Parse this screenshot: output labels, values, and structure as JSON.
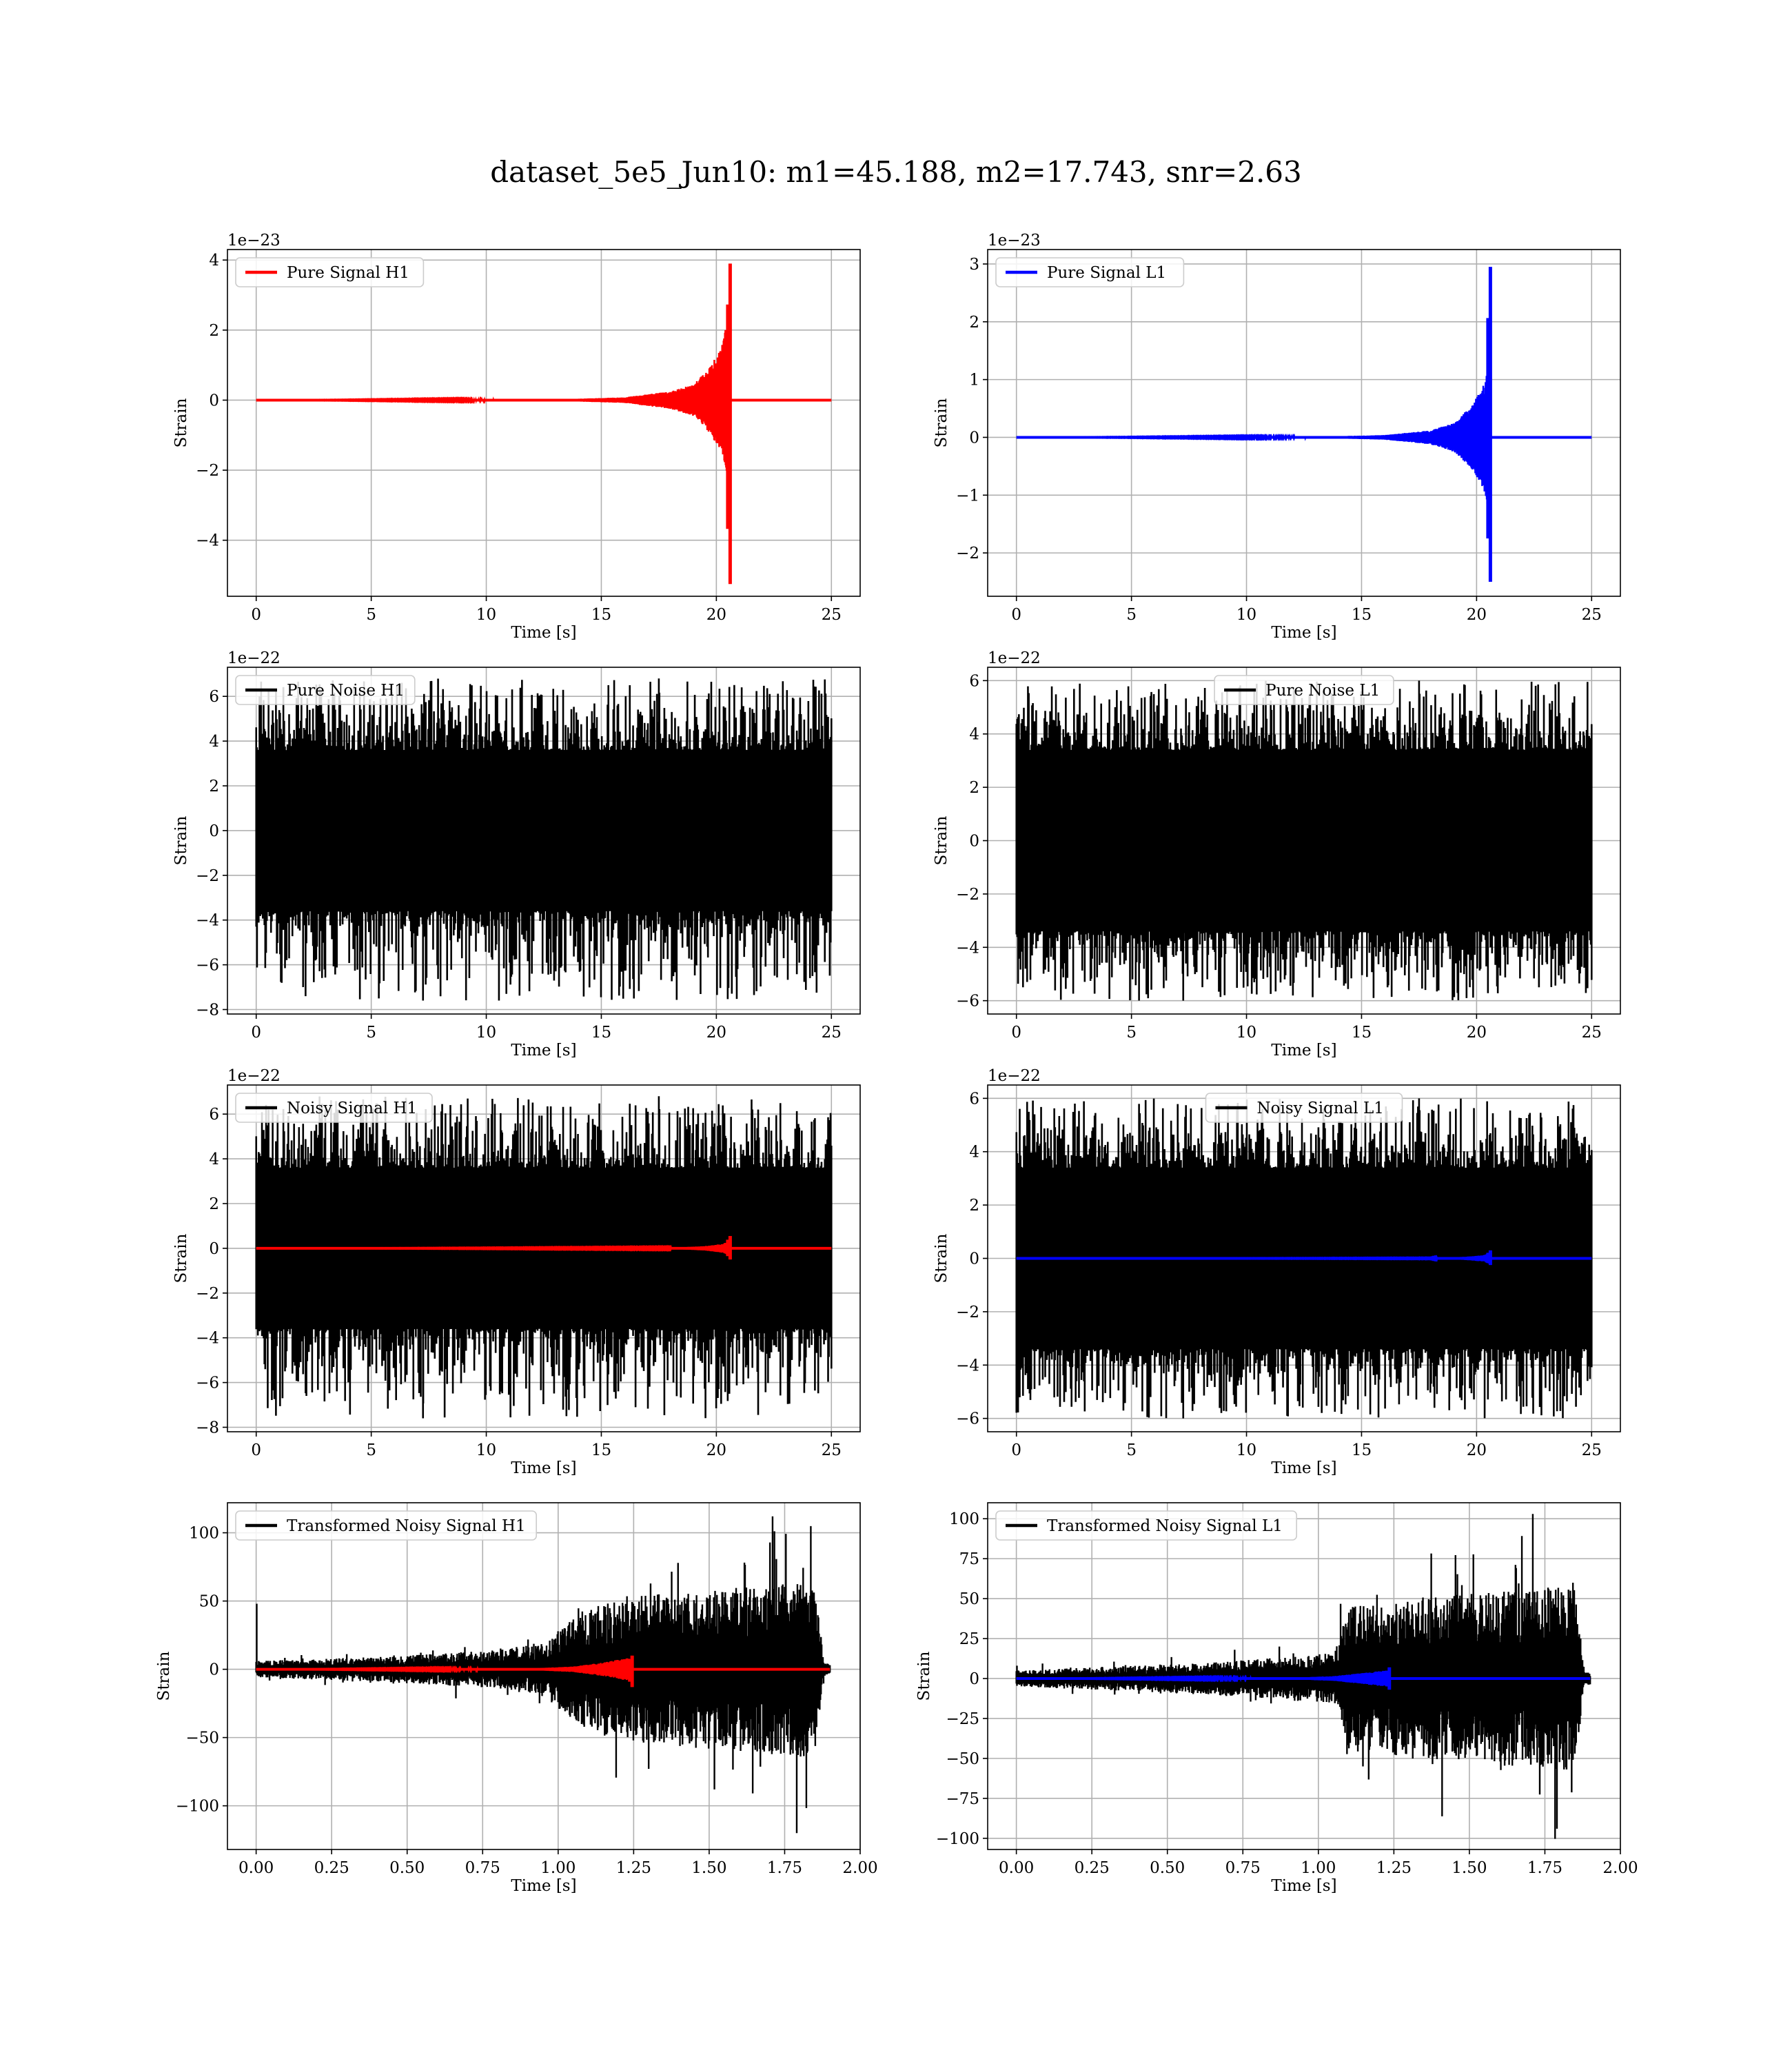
{
  "figure": {
    "title": "dataset_5e5_Jun10: m1=45.188, m2=17.743, snr=2.63"
  },
  "chart_data": [
    {
      "type": "line",
      "id": "pure-signal-h1",
      "xlabel": "Time [s]",
      "ylabel": "Strain",
      "offset_text": "1e−23",
      "xlim": [
        -1.25,
        26.25
      ],
      "ylim": [
        -5.6,
        4.3
      ],
      "xticks": [
        0,
        5,
        10,
        15,
        20,
        25
      ],
      "xtick_labels": [
        "0",
        "5",
        "10",
        "15",
        "20",
        "25"
      ],
      "yticks": [
        -4,
        -2,
        0,
        2,
        4
      ],
      "ytick_labels": [
        "−4",
        "−2",
        "0",
        "2",
        "4"
      ],
      "grid": true,
      "legend_position": "upper left",
      "series": [
        {
          "name": "Pure Signal H1",
          "color": "#ff0000",
          "kind": "chirp",
          "duration": 25,
          "merger_time": 20.6,
          "peak_max": 3.9,
          "peak_min": -5.25,
          "envelope": [
            [
              0,
              0
            ],
            [
              13,
              0.02
            ],
            [
              16,
              0.08
            ],
            [
              18,
              0.25
            ],
            [
              19,
              0.45
            ],
            [
              19.8,
              1.0
            ],
            [
              20.3,
              1.7
            ],
            [
              20.55,
              2.6
            ]
          ]
        }
      ]
    },
    {
      "type": "line",
      "id": "pure-signal-l1",
      "xlabel": "Time [s]",
      "ylabel": "Strain",
      "offset_text": "1e−23",
      "xlim": [
        -1.25,
        26.25
      ],
      "ylim": [
        -2.75,
        3.25
      ],
      "xticks": [
        0,
        5,
        10,
        15,
        20,
        25
      ],
      "xtick_labels": [
        "0",
        "5",
        "10",
        "15",
        "20",
        "25"
      ],
      "yticks": [
        -2,
        -1,
        0,
        1,
        2,
        3
      ],
      "ytick_labels": [
        "−2",
        "−1",
        "0",
        "1",
        "2",
        "3"
      ],
      "grid": true,
      "legend_position": "upper left",
      "series": [
        {
          "name": "Pure Signal L1",
          "color": "#0000ff",
          "kind": "chirp",
          "duration": 25,
          "merger_time": 20.6,
          "peak_max": 2.95,
          "peak_min": -2.5,
          "envelope": [
            [
              0,
              0
            ],
            [
              13,
              0.01
            ],
            [
              16,
              0.04
            ],
            [
              18,
              0.12
            ],
            [
              19,
              0.25
            ],
            [
              19.8,
              0.55
            ],
            [
              20.3,
              0.9
            ],
            [
              20.55,
              1.3
            ]
          ]
        }
      ]
    },
    {
      "type": "line",
      "id": "pure-noise-h1",
      "xlabel": "Time [s]",
      "ylabel": "Strain",
      "offset_text": "1e−22",
      "xlim": [
        -1.25,
        26.25
      ],
      "ylim": [
        -8.2,
        7.3
      ],
      "xticks": [
        0,
        5,
        10,
        15,
        20,
        25
      ],
      "xtick_labels": [
        "0",
        "5",
        "10",
        "15",
        "20",
        "25"
      ],
      "yticks": [
        -8,
        -6,
        -4,
        -2,
        0,
        2,
        4,
        6
      ],
      "ytick_labels": [
        "−8",
        "−6",
        "−4",
        "−2",
        "0",
        "2",
        "4",
        "6"
      ],
      "grid": true,
      "legend_position": "upper left",
      "series": [
        {
          "name": "Pure Noise H1",
          "color": "#000000",
          "kind": "noise",
          "duration": 25,
          "band": 3.6,
          "spike_max": 6.8,
          "spike_min": -7.6
        }
      ]
    },
    {
      "type": "line",
      "id": "pure-noise-l1",
      "xlabel": "Time [s]",
      "ylabel": "Strain",
      "offset_text": "1e−22",
      "xlim": [
        -1.25,
        26.25
      ],
      "ylim": [
        -6.5,
        6.5
      ],
      "xticks": [
        0,
        5,
        10,
        15,
        20,
        25
      ],
      "xtick_labels": [
        "0",
        "5",
        "10",
        "15",
        "20",
        "25"
      ],
      "yticks": [
        -6,
        -4,
        -2,
        0,
        2,
        4,
        6
      ],
      "ytick_labels": [
        "−6",
        "−4",
        "−2",
        "0",
        "2",
        "4",
        "6"
      ],
      "grid": true,
      "legend_position": "upper center",
      "series": [
        {
          "name": "Pure Noise L1",
          "color": "#000000",
          "kind": "noise",
          "duration": 25,
          "band": 3.4,
          "spike_max": 6.0,
          "spike_min": -6.0
        }
      ]
    },
    {
      "type": "line",
      "id": "noisy-signal-h1",
      "xlabel": "Time [s]",
      "ylabel": "Strain",
      "offset_text": "1e−22",
      "xlim": [
        -1.25,
        26.25
      ],
      "ylim": [
        -8.2,
        7.3
      ],
      "xticks": [
        0,
        5,
        10,
        15,
        20,
        25
      ],
      "xtick_labels": [
        "0",
        "5",
        "10",
        "15",
        "20",
        "25"
      ],
      "yticks": [
        -8,
        -6,
        -4,
        -2,
        0,
        2,
        4,
        6
      ],
      "ytick_labels": [
        "−8",
        "−6",
        "−4",
        "−2",
        "0",
        "2",
        "4",
        "6"
      ],
      "grid": true,
      "legend_position": "upper left",
      "series": [
        {
          "name": "Noisy Signal H1",
          "color": "#000000",
          "kind": "noise",
          "duration": 25,
          "band": 3.6,
          "spike_max": 6.8,
          "spike_min": -7.6
        },
        {
          "color": "#ff0000",
          "kind": "chirp",
          "duration": 25,
          "merger_time": 20.6,
          "peak_max": 0.55,
          "peak_min": -0.5,
          "envelope": [
            [
              0,
              0
            ],
            [
              18,
              0.02
            ],
            [
              19.5,
              0.1
            ],
            [
              20.3,
              0.2
            ],
            [
              20.55,
              0.35
            ]
          ]
        }
      ]
    },
    {
      "type": "line",
      "id": "noisy-signal-l1",
      "xlabel": "Time [s]",
      "ylabel": "Strain",
      "offset_text": "1e−22",
      "xlim": [
        -1.25,
        26.25
      ],
      "ylim": [
        -6.5,
        6.5
      ],
      "xticks": [
        0,
        5,
        10,
        15,
        20,
        25
      ],
      "xtick_labels": [
        "0",
        "5",
        "10",
        "15",
        "20",
        "25"
      ],
      "yticks": [
        -6,
        -4,
        -2,
        0,
        2,
        4,
        6
      ],
      "ytick_labels": [
        "−6",
        "−4",
        "−2",
        "0",
        "2",
        "4",
        "6"
      ],
      "grid": true,
      "legend_position": "upper center",
      "series": [
        {
          "name": "Noisy Signal L1",
          "color": "#000000",
          "kind": "noise",
          "duration": 25,
          "band": 3.4,
          "spike_max": 6.0,
          "spike_min": -6.0
        },
        {
          "color": "#0000ff",
          "kind": "chirp",
          "duration": 25,
          "merger_time": 20.6,
          "peak_max": 0.3,
          "peak_min": -0.25,
          "envelope": [
            [
              0,
              0
            ],
            [
              18,
              0.01
            ],
            [
              19.5,
              0.06
            ],
            [
              20.3,
              0.12
            ],
            [
              20.55,
              0.2
            ]
          ]
        }
      ]
    },
    {
      "type": "line",
      "id": "transformed-h1",
      "xlabel": "Time [s]",
      "ylabel": "Strain",
      "offset_text": "",
      "xlim": [
        -0.095,
        2.0
      ],
      "ylim": [
        -132,
        122
      ],
      "xticks": [
        0,
        0.25,
        0.5,
        0.75,
        1.0,
        1.25,
        1.5,
        1.75,
        2.0
      ],
      "xtick_labels": [
        "0.00",
        "0.25",
        "0.50",
        "0.75",
        "1.00",
        "1.25",
        "1.50",
        "1.75",
        "2.00"
      ],
      "yticks": [
        -100,
        -50,
        0,
        50,
        100
      ],
      "ytick_labels": [
        "−100",
        "−50",
        "0",
        "50",
        "100"
      ],
      "grid": true,
      "legend_position": "upper left",
      "series": [
        {
          "name": "Transformed Noisy Signal H1",
          "color": "#000000",
          "kind": "whitened",
          "duration": 1.9,
          "envelope": [
            [
              0,
              6
            ],
            [
              0.4,
              9
            ],
            [
              0.8,
              14
            ],
            [
              0.95,
              20
            ],
            [
              1.1,
              45
            ],
            [
              1.3,
              55
            ],
            [
              1.6,
              60
            ],
            [
              1.85,
              65
            ],
            [
              1.88,
              5
            ],
            [
              1.9,
              4
            ]
          ],
          "spike_max": 112,
          "spike_min": -120,
          "initial_spike": 48
        },
        {
          "color": "#ff0000",
          "kind": "chirp",
          "duration": 1.9,
          "merger_time": 1.245,
          "peak_max": 10,
          "peak_min": -13,
          "envelope": [
            [
              0,
              0
            ],
            [
              0.9,
              0.5
            ],
            [
              1.05,
              2
            ],
            [
              1.15,
              5
            ],
            [
              1.22,
              8
            ]
          ]
        }
      ]
    },
    {
      "type": "line",
      "id": "transformed-l1",
      "xlabel": "Time [s]",
      "ylabel": "Strain",
      "offset_text": "",
      "xlim": [
        -0.095,
        2.0
      ],
      "ylim": [
        -107,
        110
      ],
      "xticks": [
        0,
        0.25,
        0.5,
        0.75,
        1.0,
        1.25,
        1.5,
        1.75,
        2.0
      ],
      "xtick_labels": [
        "0.00",
        "0.25",
        "0.50",
        "0.75",
        "1.00",
        "1.25",
        "1.50",
        "1.75",
        "2.00"
      ],
      "yticks": [
        -100,
        -75,
        -50,
        -25,
        0,
        25,
        50,
        75,
        100
      ],
      "ytick_labels": [
        "−100",
        "−75",
        "−50",
        "−25",
        "0",
        "25",
        "50",
        "75",
        "100"
      ],
      "grid": true,
      "legend_position": "upper left",
      "series": [
        {
          "name": "Transformed Noisy Signal L1",
          "color": "#000000",
          "kind": "whitened",
          "duration": 1.9,
          "envelope": [
            [
              0,
              5
            ],
            [
              0.4,
              8
            ],
            [
              0.8,
              12
            ],
            [
              1.05,
              16
            ],
            [
              1.1,
              45
            ],
            [
              1.3,
              50
            ],
            [
              1.6,
              55
            ],
            [
              1.85,
              58
            ],
            [
              1.88,
              4
            ],
            [
              1.9,
              4
            ]
          ],
          "spike_max": 103,
          "spike_min": -94,
          "initial_spike": 8
        },
        {
          "color": "#0000ff",
          "kind": "chirp",
          "duration": 1.9,
          "merger_time": 1.235,
          "peak_max": 7,
          "peak_min": -7,
          "envelope": [
            [
              0,
              0
            ],
            [
              0.9,
              0.4
            ],
            [
              1.05,
              1.5
            ],
            [
              1.15,
              3.5
            ],
            [
              1.22,
              5
            ]
          ]
        }
      ]
    }
  ]
}
